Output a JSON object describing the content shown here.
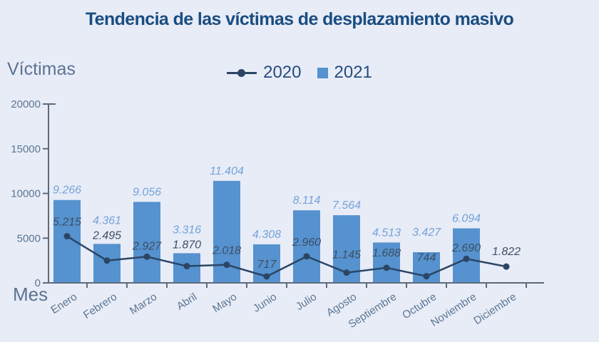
{
  "title": "Tendencia de las víctimas de desplazamiento masivo",
  "y_axis_title": "Víctimas",
  "x_axis_title": "Mes",
  "legend": {
    "line_series_label": "2020",
    "bar_series_label": "2021"
  },
  "colors": {
    "background": "#e8ecf7",
    "title": "#1a4d80",
    "bar": "#5592cf",
    "line": "#2b4565",
    "bar_label": "#74a3d8",
    "line_label": "#3f4e63",
    "axis_line": "#5e6a7c",
    "axis_text": "#5c7693",
    "legend_text": "#254d7c"
  },
  "chart_data": {
    "type": "bar",
    "subtype": "bar-and-line-combo",
    "title": "Tendencia de las víctimas de desplazamiento masivo",
    "xlabel": "Mes",
    "ylabel": "Víctimas",
    "ylim": [
      0,
      20000
    ],
    "y_ticks": [
      0,
      5000,
      10000,
      15000,
      20000
    ],
    "grid": false,
    "legend_position": "top-center",
    "categories": [
      "Enero",
      "Febrero",
      "Marzo",
      "Abril",
      "Mayo",
      "Junio",
      "Julio",
      "Agosto",
      "Septiembre",
      "Octubre",
      "Noviembre",
      "Diciembre"
    ],
    "series": [
      {
        "name": "2020",
        "type": "line",
        "values": [
          5215,
          2495,
          2927,
          1870,
          2018,
          717,
          2960,
          1145,
          1688,
          744,
          2690,
          1822
        ],
        "labels": [
          "5.215",
          "2.495",
          "2.927",
          "1.870",
          "2.018",
          "717",
          "2.960",
          "1.145",
          "1.688",
          "744",
          "2.690",
          "1.822"
        ]
      },
      {
        "name": "2021",
        "type": "bar",
        "values": [
          9266,
          4361,
          9056,
          3316,
          11404,
          4308,
          8114,
          7564,
          4513,
          3427,
          6094,
          null
        ],
        "labels": [
          "9.266",
          "4.361",
          "9.056",
          "3.316",
          "11.404",
          "4.308",
          "8.114",
          "7.564",
          "4.513",
          "3.427",
          "6.094",
          null
        ]
      }
    ]
  }
}
